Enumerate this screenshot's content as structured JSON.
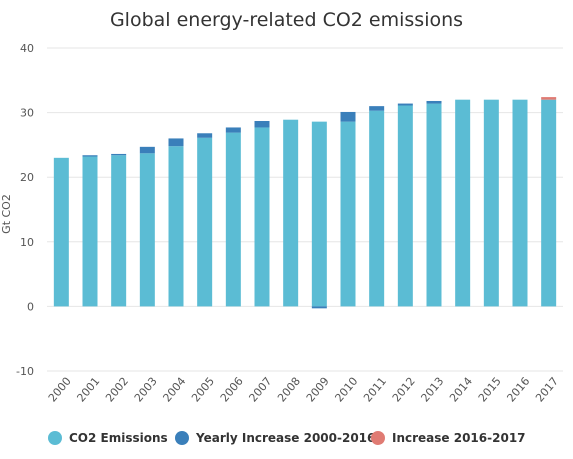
{
  "chart_data": {
    "type": "bar",
    "title": "Global energy-related CO2 emissions",
    "ylabel": "Gt CO2",
    "xlabel": "",
    "ylim": [
      -10,
      40
    ],
    "yticks": [
      "40",
      "30",
      "20",
      "10",
      "0",
      "-10"
    ],
    "ytick_values": [
      40,
      30,
      20,
      10,
      0,
      -10
    ],
    "grid": true,
    "legend_position": "bottom",
    "categories": [
      "2000",
      "2001",
      "2002",
      "2003",
      "2004",
      "2005",
      "2006",
      "2007",
      "2008",
      "2009",
      "2010",
      "2011",
      "2012",
      "2013",
      "2014",
      "2015",
      "2016",
      "2017"
    ],
    "series": [
      {
        "name": "CO2 Emissions",
        "color": "#5bbcd4",
        "values": [
          23.0,
          23.2,
          23.4,
          23.7,
          24.8,
          26.1,
          26.9,
          27.7,
          28.9,
          28.6,
          28.6,
          30.3,
          31.1,
          31.4,
          32.0,
          32.0,
          32.0,
          32.0
        ]
      },
      {
        "name": "Yearly Increase 2000-2016",
        "color": "#3a7fba",
        "values": [
          0,
          0.2,
          0.2,
          1.0,
          1.2,
          0.7,
          0.8,
          1.0,
          0,
          -0.3,
          1.5,
          0.7,
          0.3,
          0.4,
          0,
          0,
          0,
          0
        ]
      },
      {
        "name": "Increase 2016-2017",
        "color": "#e07b73",
        "values": [
          0,
          0,
          0,
          0,
          0,
          0,
          0,
          0,
          0,
          0,
          0,
          0,
          0,
          0,
          0,
          0,
          0,
          0.4
        ]
      }
    ]
  }
}
